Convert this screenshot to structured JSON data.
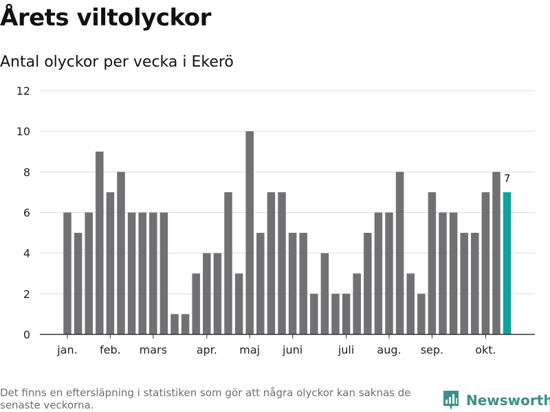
{
  "header": {
    "title": "Årets viltolyckor",
    "subtitle": "Antal olyckor per vecka i Ekerö"
  },
  "footer": {
    "note": "Det finns en eftersläpning i statistiken som gör att några olyckor kan saknas de senaste veckorna.",
    "brand": "Newsworthy",
    "brand_icon": "newsworthy-logo-icon"
  },
  "colors": {
    "bar": "#717073",
    "highlight": "#0ca39a",
    "grid": "#dddddd",
    "axis": "#333333",
    "brand": "#3b8f87"
  },
  "chart_data": {
    "type": "bar",
    "values": [
      6,
      5,
      6,
      9,
      7,
      8,
      6,
      6,
      6,
      6,
      1,
      1,
      3,
      4,
      4,
      7,
      3,
      10,
      5,
      7,
      7,
      5,
      5,
      2,
      4,
      2,
      2,
      3,
      5,
      6,
      6,
      8,
      3,
      2,
      7,
      6,
      6,
      5,
      5,
      7,
      8,
      7
    ],
    "highlight_last": true,
    "last_value_label": "7",
    "month_labels": [
      {
        "label": "jan.",
        "week": 1
      },
      {
        "label": "feb.",
        "week": 5
      },
      {
        "label": "mars",
        "week": 9
      },
      {
        "label": "apr.",
        "week": 14
      },
      {
        "label": "maj",
        "week": 18
      },
      {
        "label": "juni",
        "week": 22
      },
      {
        "label": "juli",
        "week": 27
      },
      {
        "label": "aug.",
        "week": 31
      },
      {
        "label": "sep.",
        "week": 35
      },
      {
        "label": "okt.",
        "week": 40
      }
    ],
    "ylim": [
      0,
      12
    ],
    "yticks": [
      0,
      2,
      4,
      6,
      8,
      10,
      12
    ],
    "grid": true,
    "title": "Årets viltolyckor",
    "subtitle": "Antal olyckor per vecka i Ekerö",
    "xlabel": "",
    "ylabel": ""
  }
}
